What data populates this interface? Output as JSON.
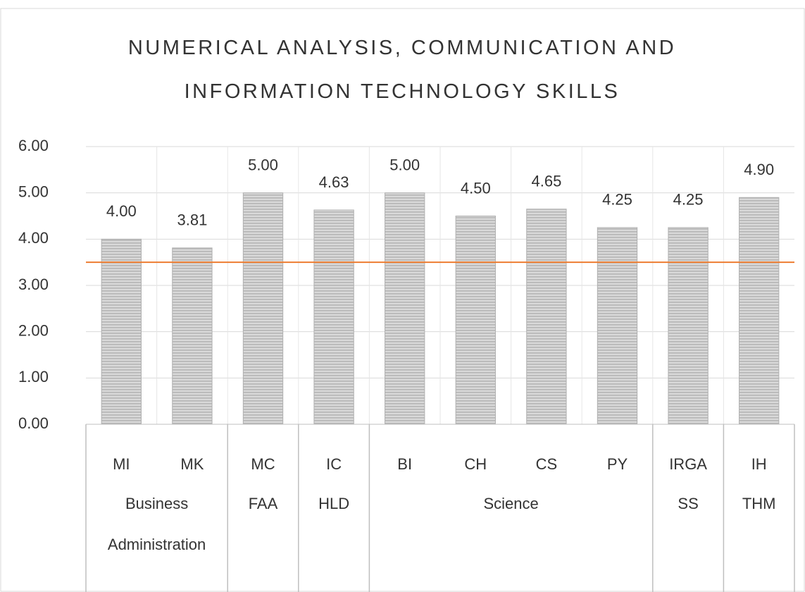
{
  "chart_data": {
    "type": "bar",
    "title": "NUMERICAL ANALYSIS, COMMUNICATION AND INFORMATION TECHNOLOGY SKILLS",
    "categories": [
      "MI",
      "MK",
      "MC",
      "IC",
      "BI",
      "CH",
      "CS",
      "PY",
      "IRGA",
      "IH"
    ],
    "groups": [
      {
        "name": "Business Administration",
        "size": 2
      },
      {
        "name": "FAA",
        "size": 1
      },
      {
        "name": "HLD",
        "size": 1
      },
      {
        "name": "Science",
        "size": 4
      },
      {
        "name": "SS",
        "size": 1
      },
      {
        "name": "THM",
        "size": 1
      }
    ],
    "values": [
      4,
      3.81,
      5,
      4.63,
      5,
      4.5,
      4.65,
      4.25,
      4.25,
      4.9
    ],
    "value_labels": [
      "4.00",
      "3.81",
      "5.00",
      "4.63",
      "5.00",
      "4.50",
      "4.65",
      "4.25",
      "4.25",
      "4.90"
    ],
    "color": "#d0d0d0",
    "reference_line": {
      "value": 3.5,
      "color": "#ed7d31"
    },
    "ylim": [
      0,
      6
    ],
    "yticks": [
      {
        "value": 0,
        "label": "0.00"
      },
      {
        "value": 1,
        "label": "1.00"
      },
      {
        "value": 2,
        "label": "2.00"
      },
      {
        "value": 3,
        "label": "3.00"
      },
      {
        "value": 4,
        "label": "4.00"
      },
      {
        "value": 5,
        "label": "5.00"
      },
      {
        "value": 6,
        "label": "6.00"
      }
    ],
    "grid": true
  }
}
